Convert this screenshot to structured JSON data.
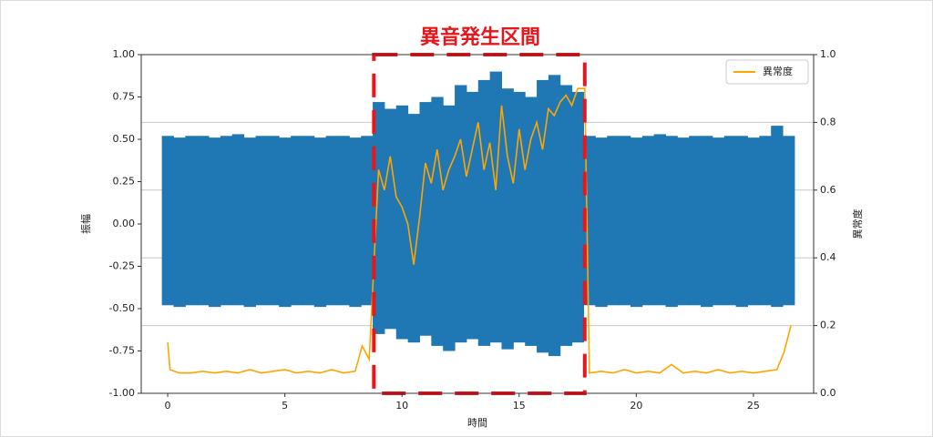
{
  "chart_data": {
    "type": "line",
    "xlabel": "時間",
    "ylabel": "振幅",
    "y2label": "異常度",
    "xlim": [
      -1.13,
      27.57
    ],
    "xticks": [
      0,
      5,
      10,
      15,
      20,
      25
    ],
    "ylim": [
      -1,
      1
    ],
    "yticks": [
      {
        "value": -1,
        "label": "-1.00"
      },
      {
        "value": -0.75,
        "label": "-0.75"
      },
      {
        "value": -0.5,
        "label": "-0.50"
      },
      {
        "value": -0.25,
        "label": "-0.25"
      },
      {
        "value": 0,
        "label": "0.00"
      },
      {
        "value": 0.25,
        "label": "0.25"
      },
      {
        "value": 0.5,
        "label": "0.50"
      },
      {
        "value": 0.75,
        "label": "0.75"
      },
      {
        "value": 1,
        "label": "1.00"
      }
    ],
    "y2lim": [
      0,
      1
    ],
    "y2ticks": [
      {
        "value": 0,
        "label": "0.0"
      },
      {
        "value": 0.2,
        "label": "0.2"
      },
      {
        "value": 0.4,
        "label": "0.4"
      },
      {
        "value": 0.6,
        "label": "0.6"
      },
      {
        "value": 0.8,
        "label": "0.8"
      },
      {
        "value": 1,
        "label": "1.0"
      }
    ],
    "grid": "y2",
    "legend": "upper right",
    "highlight": {
      "label": "異音発生区間",
      "xrange": [
        8.8,
        17.8
      ],
      "color": "#e8161b"
    },
    "series": [
      {
        "color": "#1f77b4",
        "x": [
          0,
          0.5,
          1,
          1.5,
          2,
          2.5,
          3,
          3.5,
          4,
          4.5,
          5,
          5.5,
          6,
          6.5,
          7,
          7.5,
          8,
          8.5,
          9,
          9.5,
          10,
          10.5,
          11,
          11.5,
          12,
          12.5,
          13,
          13.5,
          14,
          14.5,
          15,
          15.5,
          16,
          16.5,
          17,
          17.5,
          18,
          18.5,
          19,
          19.5,
          20,
          20.5,
          21,
          21.5,
          22,
          22.5,
          23,
          23.5,
          24,
          24.5,
          25,
          25.5,
          26,
          26.5
        ],
        "values": [
          0.52,
          0.51,
          0.52,
          0.52,
          0.51,
          0.52,
          0.53,
          0.51,
          0.52,
          0.52,
          0.51,
          0.52,
          0.52,
          0.51,
          0.52,
          0.52,
          0.51,
          0.52,
          0.72,
          0.68,
          0.7,
          0.65,
          0.72,
          0.75,
          0.7,
          0.82,
          0.78,
          0.85,
          0.9,
          0.8,
          0.78,
          0.75,
          0.85,
          0.88,
          0.82,
          0.78,
          0.52,
          0.51,
          0.52,
          0.52,
          0.51,
          0.52,
          0.53,
          0.52,
          0.51,
          0.52,
          0.52,
          0.51,
          0.52,
          0.52,
          0.51,
          0.52,
          0.58,
          0.52
        ],
        "lower": [
          -0.48,
          -0.49,
          -0.48,
          -0.48,
          -0.49,
          -0.48,
          -0.48,
          -0.49,
          -0.48,
          -0.48,
          -0.49,
          -0.48,
          -0.48,
          -0.49,
          -0.48,
          -0.48,
          -0.49,
          -0.48,
          -0.65,
          -0.62,
          -0.68,
          -0.7,
          -0.66,
          -0.72,
          -0.75,
          -0.7,
          -0.68,
          -0.72,
          -0.7,
          -0.74,
          -0.7,
          -0.72,
          -0.76,
          -0.78,
          -0.72,
          -0.7,
          -0.48,
          -0.49,
          -0.48,
          -0.48,
          -0.49,
          -0.48,
          -0.48,
          -0.49,
          -0.48,
          -0.48,
          -0.49,
          -0.48,
          -0.48,
          -0.49,
          -0.48,
          -0.48,
          -0.49,
          -0.48
        ]
      },
      {
        "name": "異常度",
        "color": "#ffa500",
        "axis": "y2",
        "x": [
          0,
          0.1,
          0.5,
          1,
          1.5,
          2,
          2.5,
          3,
          3.5,
          4,
          4.5,
          5,
          5.5,
          6,
          6.5,
          7,
          7.5,
          8,
          8.3,
          8.6,
          9,
          9.25,
          9.5,
          9.75,
          10,
          10.25,
          10.5,
          10.75,
          11,
          11.25,
          11.5,
          11.75,
          12,
          12.25,
          12.5,
          12.75,
          13,
          13.25,
          13.5,
          13.75,
          14,
          14.25,
          14.5,
          14.75,
          15,
          15.25,
          15.5,
          15.75,
          16,
          16.25,
          16.5,
          16.75,
          17,
          17.25,
          17.5,
          17.8,
          18,
          18.5,
          19,
          19.5,
          20,
          20.5,
          21,
          21.5,
          22,
          22.5,
          23,
          23.5,
          24,
          24.5,
          25,
          25.5,
          26,
          26.3,
          26.6
        ],
        "values": [
          0.15,
          0.07,
          0.06,
          0.06,
          0.065,
          0.06,
          0.065,
          0.06,
          0.07,
          0.06,
          0.065,
          0.07,
          0.06,
          0.065,
          0.06,
          0.07,
          0.06,
          0.065,
          0.14,
          0.1,
          0.66,
          0.6,
          0.7,
          0.58,
          0.55,
          0.5,
          0.38,
          0.52,
          0.68,
          0.62,
          0.72,
          0.6,
          0.66,
          0.7,
          0.75,
          0.64,
          0.72,
          0.8,
          0.66,
          0.74,
          0.6,
          0.85,
          0.7,
          0.62,
          0.78,
          0.66,
          0.75,
          0.8,
          0.72,
          0.84,
          0.82,
          0.86,
          0.88,
          0.85,
          0.9,
          0.9,
          0.06,
          0.065,
          0.06,
          0.07,
          0.06,
          0.065,
          0.06,
          0.085,
          0.06,
          0.065,
          0.06,
          0.07,
          0.06,
          0.065,
          0.06,
          0.065,
          0.07,
          0.12,
          0.2
        ]
      }
    ]
  }
}
